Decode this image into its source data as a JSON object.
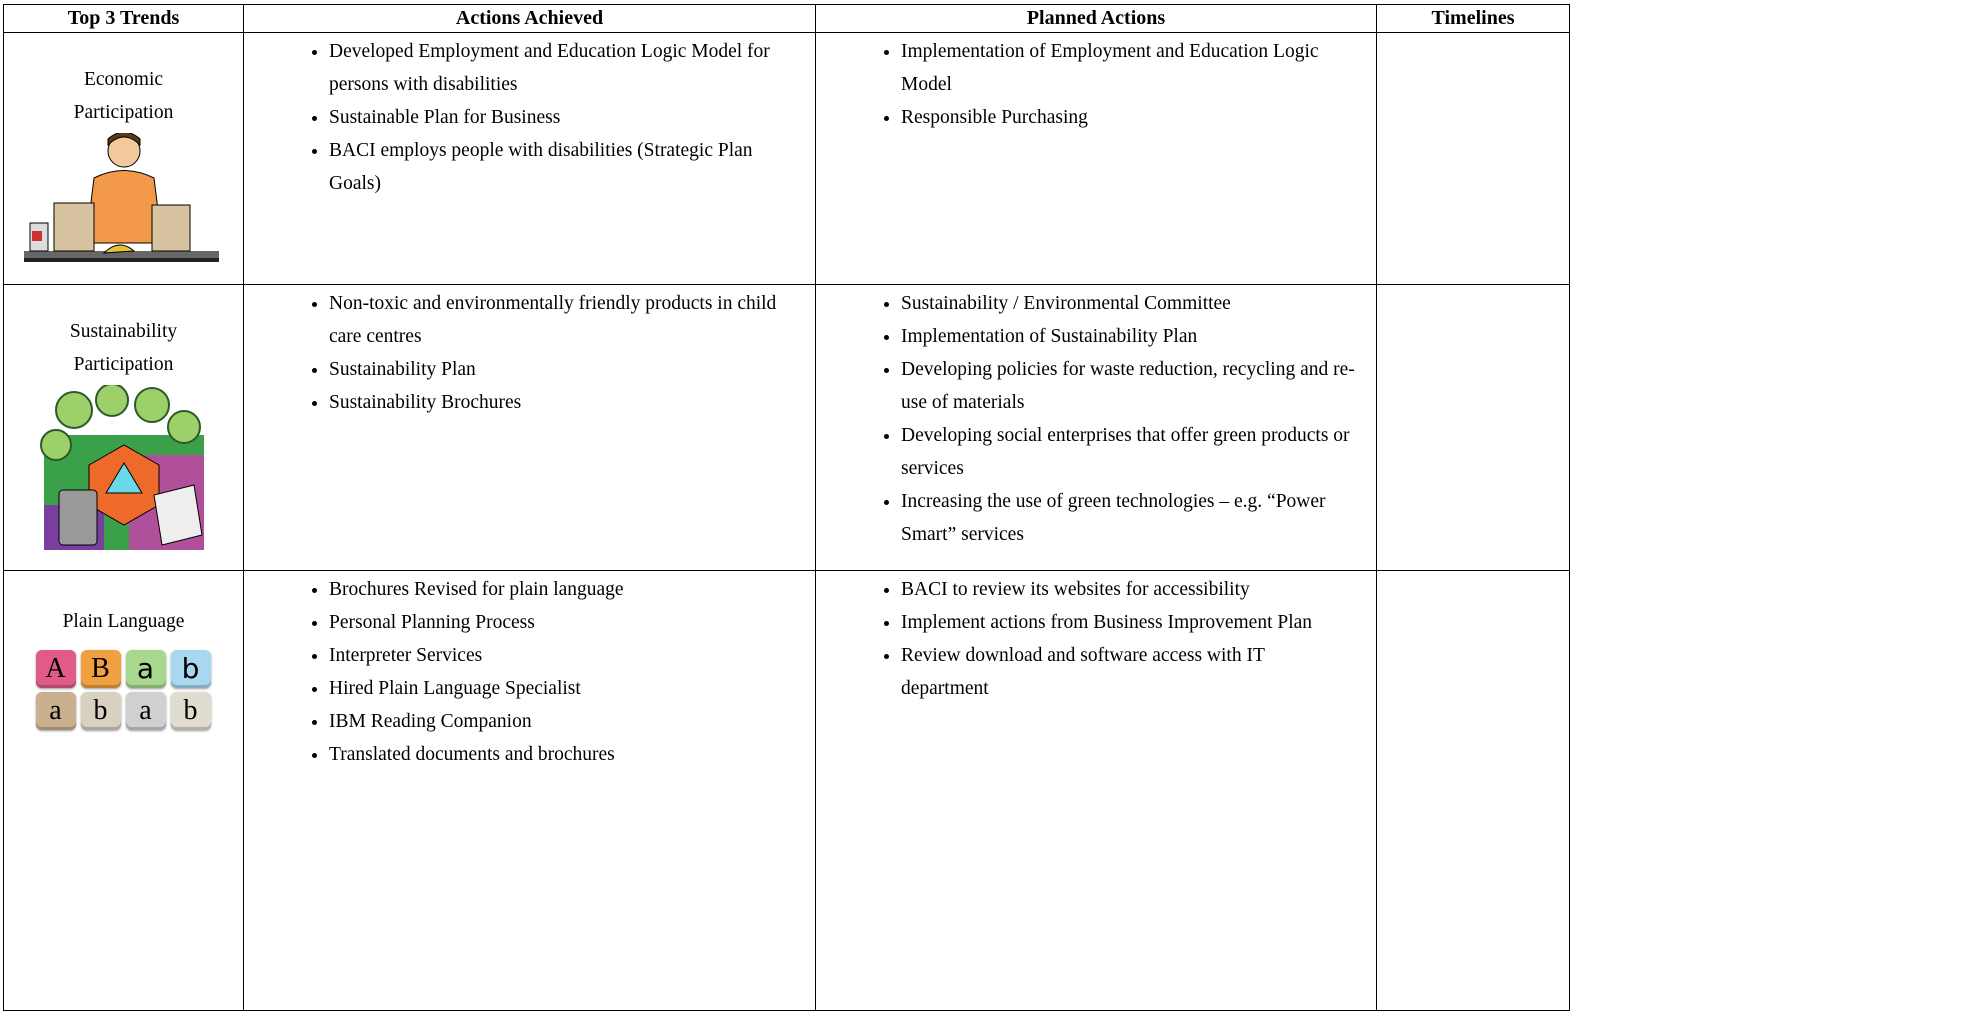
{
  "table": {
    "headers": [
      "Top 3 Trends",
      "Actions Achieved",
      "Planned Actions",
      "Timelines"
    ],
    "rows": [
      {
        "trend": [
          "Economic",
          "Participation"
        ],
        "achieved": [
          "Developed Employment and Education Logic Model for persons with disabilities",
          "Sustainable Plan for Business",
          "BACI employs people with disabilities (Strategic Plan Goals)"
        ],
        "planned": [
          "Implementation of Employment and Education Logic Model",
          "Responsible Purchasing"
        ]
      },
      {
        "trend": [
          "Sustainability",
          "Participation"
        ],
        "achieved": [
          "Non-toxic and environmentally friendly products in child care centres",
          "Sustainability Plan",
          "Sustainability Brochures"
        ],
        "planned": [
          "Sustainability / Environmental Committee",
          "Implementation of Sustainability Plan",
          "Developing policies for waste reduction, recycling and re-use of materials",
          "Developing social enterprises that offer green products or services",
          "Increasing the use of green technologies – e.g. “Power Smart” services"
        ]
      },
      {
        "trend": [
          "Plain Language"
        ],
        "letters": [
          "A",
          "B",
          "a",
          "b",
          "a",
          "b",
          "a",
          "b"
        ],
        "achieved": [
          "Brochures Revised for plain language",
          "Personal Planning Process",
          "Interpreter Services",
          "Hired Plain Language Specialist",
          "IBM Reading Companion",
          "Translated documents and brochures"
        ],
        "planned": [
          "BACI to review its websites for accessibility",
          "Implement actions from Business Improvement Plan",
          "Review download and software access with IT department"
        ]
      }
    ]
  }
}
